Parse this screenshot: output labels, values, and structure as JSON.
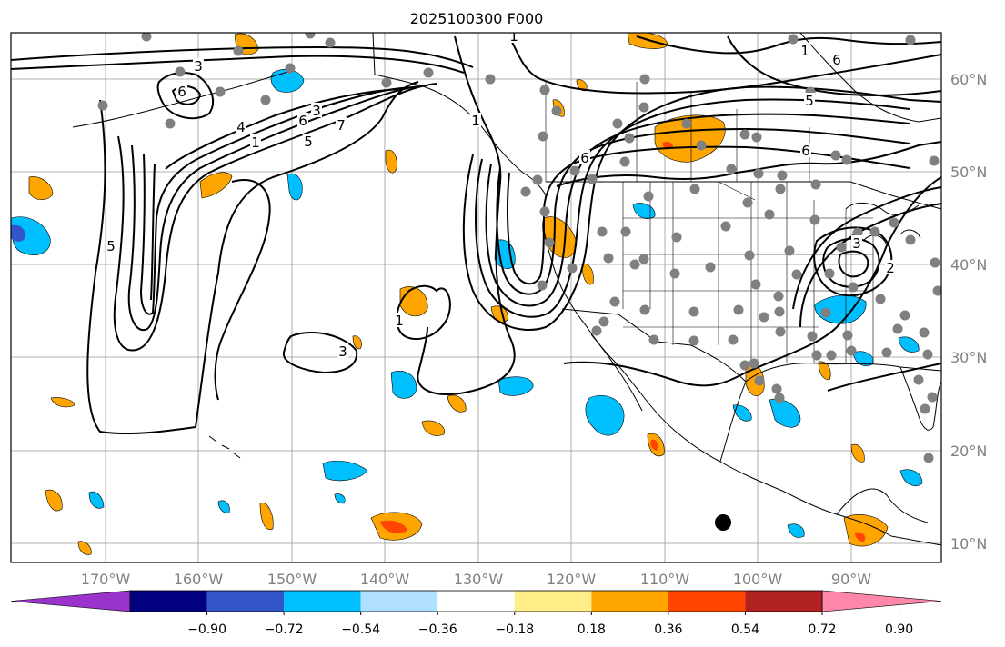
{
  "title": "2025100300 F000",
  "lon_labels": [
    "170°W",
    "160°W",
    "150°W",
    "140°W",
    "130°W",
    "120°W",
    "110°W",
    "100°W",
    "90°W"
  ],
  "lat_labels": [
    "60°N",
    "50°N",
    "40°N",
    "30°N",
    "20°N",
    "10°N"
  ],
  "colorbar": {
    "tick_labels": [
      "−0.90",
      "−0.72",
      "−0.54",
      "−0.36",
      "−0.18",
      "0.18",
      "0.36",
      "0.54",
      "0.72",
      "0.90"
    ],
    "colors": [
      "#9933cc",
      "#000080",
      "#3355cc",
      "#00bfff",
      "#b0e0ff",
      "#ffffff",
      "#ffee88",
      "#ffa500",
      "#ff4500",
      "#b22222",
      "#ff88aa"
    ]
  },
  "contour_labels": [
    "1",
    "3",
    "6",
    "5",
    "4",
    "6",
    "3",
    "1",
    "7",
    "5",
    "6",
    "1",
    "6",
    "5",
    "6",
    "3",
    "1",
    "3",
    "2",
    "1"
  ],
  "colors": {
    "blue_fill": "#00bfff",
    "orange_fill": "#ffa500",
    "red_fill": "#ff4500",
    "station_dot": "#808080",
    "contour": "#000000"
  }
}
